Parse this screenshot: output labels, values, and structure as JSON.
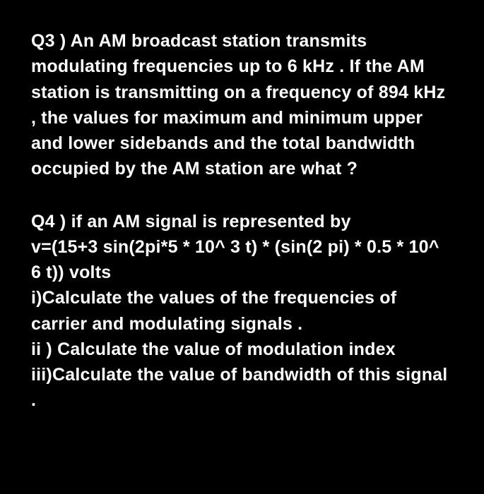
{
  "questions": {
    "q3": {
      "text": "Q3 ) An AM broadcast station transmits modulating frequencies up to 6 kHz . If the AM station is transmitting on a frequency of 894 kHz , the values for maximum and minimum upper and lower sidebands and the total bandwidth occupied by the AM station are what ?"
    },
    "q4": {
      "intro": "Q4 ) if an AM signal is represented by",
      "equation": "v=(15+3 sin(2pi*5 * 10^ 3 t)  * (sin(2 pi) * 0.5 * 10^ 6 t)) volts",
      "part_i": "i)Calculate the values of the frequencies of carrier and modulating signals .",
      "part_ii": "ii ) Calculate the value of modulation index",
      "part_iii": "iii)Calculate the value of bandwidth of this signal ."
    }
  },
  "style": {
    "background_color": "#000000",
    "text_color": "#ffffff",
    "font_size_pt": 19,
    "font_weight": "bold"
  }
}
